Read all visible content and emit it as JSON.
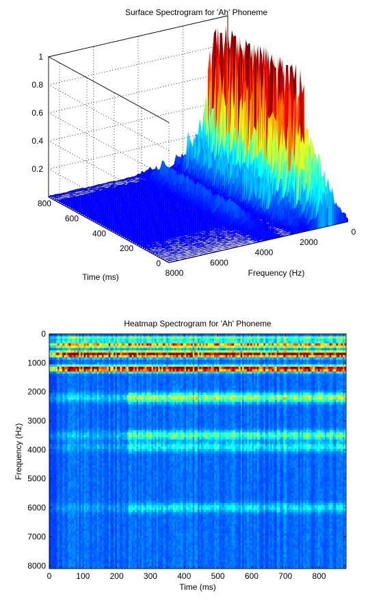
{
  "chart_data": [
    {
      "type": "surface",
      "title": "Surface Spectrogram for 'Ah' Phoneme",
      "xlabel": "Frequency (Hz)",
      "ylabel": "Time (ms)",
      "zlabel": "",
      "x_ticks": [
        "8000",
        "6000",
        "4000",
        "2000",
        "0"
      ],
      "y_ticks": [
        "0",
        "200",
        "400",
        "600",
        "800"
      ],
      "z_ticks": [
        "0.2",
        "0.4",
        "0.6",
        "0.8",
        "1"
      ],
      "xlim": [
        0,
        8000
      ],
      "ylim": [
        0,
        880
      ],
      "zlim": [
        0,
        1
      ],
      "grid": true,
      "colormap": "jet",
      "formant_peaks_hz": [
        {
          "freq": 700,
          "level": 0.8
        },
        {
          "freq": 1200,
          "level": 1.0
        },
        {
          "freq": 2200,
          "level": 0.5
        }
      ]
    },
    {
      "type": "heatmap",
      "title": "Heatmap Spectrogram for 'Ah' Phoneme",
      "xlabel": "Time (ms)",
      "ylabel": "Frequency (Hz)",
      "x_ticks": [
        "0",
        "100",
        "200",
        "300",
        "400",
        "500",
        "600",
        "700",
        "800"
      ],
      "y_ticks": [
        "0",
        "1000",
        "2000",
        "3000",
        "4000",
        "5000",
        "6000",
        "7000",
        "8000"
      ],
      "xlim": [
        0,
        880
      ],
      "ylim": [
        0,
        8100
      ],
      "y_reversed": true,
      "colormap": "jet",
      "bands": [
        {
          "freq": 150,
          "intensity": 0.35,
          "width": 60
        },
        {
          "freq": 380,
          "intensity": 0.55,
          "width": 90
        },
        {
          "freq": 700,
          "intensity": 0.85,
          "width": 100
        },
        {
          "freq": 1200,
          "intensity": 0.8,
          "width": 100
        },
        {
          "freq": 2200,
          "intensity": 0.35,
          "width": 150
        },
        {
          "freq": 3500,
          "intensity": 0.25,
          "width": 150
        },
        {
          "freq": 3900,
          "intensity": 0.18,
          "width": 150
        },
        {
          "freq": 6000,
          "intensity": 0.15,
          "width": 150
        }
      ]
    }
  ]
}
